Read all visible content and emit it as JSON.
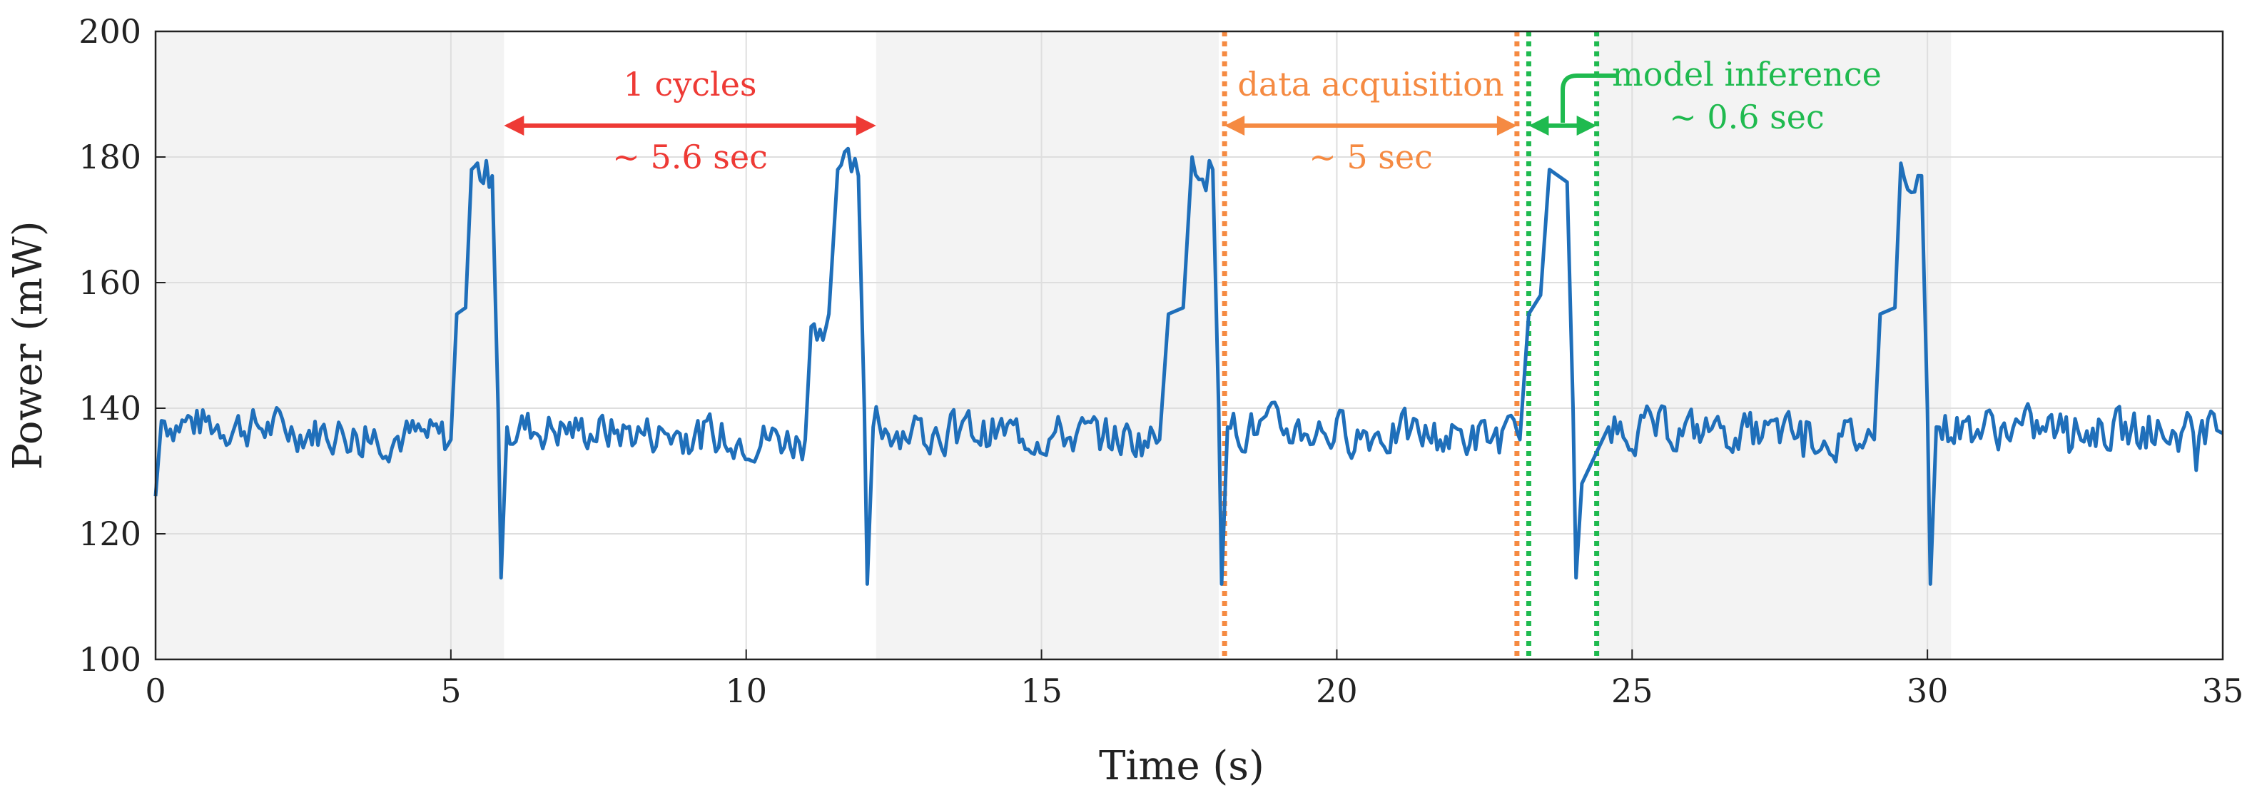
{
  "chart_data": {
    "type": "line",
    "xlabel": "Time (s)",
    "ylabel": "Power (mW)",
    "xlim": [
      0,
      35
    ],
    "ylim": [
      100,
      200
    ],
    "xticks": [
      0,
      5,
      10,
      15,
      20,
      25,
      30,
      35
    ],
    "yticks": [
      100,
      120,
      140,
      160,
      180,
      200
    ],
    "grid": true,
    "series": [
      {
        "name": "Power",
        "color": "#1f6fba",
        "baseline_mw": 136,
        "points": [
          [
            0,
            126
          ],
          [
            0.1,
            138
          ],
          [
            5.0,
            135
          ],
          [
            5.1,
            155
          ],
          [
            5.25,
            156
          ],
          [
            5.35,
            178
          ],
          [
            5.7,
            177
          ],
          [
            5.8,
            140
          ],
          [
            5.85,
            113
          ],
          [
            5.95,
            137
          ],
          [
            11.0,
            135
          ],
          [
            11.1,
            153
          ],
          [
            11.4,
            155
          ],
          [
            11.55,
            178
          ],
          [
            11.9,
            177
          ],
          [
            12.0,
            140
          ],
          [
            12.05,
            112
          ],
          [
            12.15,
            137
          ],
          [
            17.0,
            135
          ],
          [
            17.15,
            155
          ],
          [
            17.4,
            156
          ],
          [
            17.55,
            180
          ],
          [
            17.9,
            178
          ],
          [
            18.0,
            140
          ],
          [
            18.05,
            112
          ],
          [
            18.15,
            137
          ],
          [
            23.1,
            135
          ],
          [
            23.25,
            155
          ],
          [
            23.45,
            158
          ],
          [
            23.6,
            178
          ],
          [
            23.9,
            176
          ],
          [
            24.0,
            140
          ],
          [
            24.05,
            113
          ],
          [
            24.15,
            128
          ],
          [
            24.4,
            133
          ],
          [
            24.6,
            137
          ],
          [
            29.1,
            135
          ],
          [
            29.2,
            155
          ],
          [
            29.45,
            156
          ],
          [
            29.55,
            179
          ],
          [
            29.9,
            177
          ],
          [
            30.0,
            140
          ],
          [
            30.05,
            112
          ],
          [
            30.15,
            137
          ],
          [
            35,
            136
          ]
        ]
      }
    ],
    "shaded_regions": [
      [
        0,
        5.9
      ],
      [
        12.2,
        18.0
      ],
      [
        24.4,
        30.4
      ]
    ],
    "vertical_lines": [
      {
        "x": 18.1,
        "color": "#f58a42",
        "style": "dotted"
      },
      {
        "x": 23.05,
        "color": "#f58a42",
        "style": "dotted"
      },
      {
        "x": 23.25,
        "color": "#1fba4f",
        "style": "dotted"
      },
      {
        "x": 24.4,
        "color": "#1fba4f",
        "style": "dotted"
      }
    ],
    "annotations": [
      {
        "id": "cycle",
        "label": "1 cycles",
        "sublabel": "~ 5.6 sec",
        "x_start": 5.9,
        "x_end": 12.2,
        "y": 185,
        "color": "#ee3a35"
      },
      {
        "id": "acq",
        "label": "data acquisition",
        "sublabel": "~ 5 sec",
        "x_start": 18.1,
        "x_end": 23.05,
        "y": 185,
        "color": "#f58a42"
      },
      {
        "id": "inf",
        "label": "model inference",
        "sublabel": "~ 0.6 sec",
        "x_start": 23.25,
        "x_end": 24.4,
        "y": 185,
        "color": "#1fba4f"
      }
    ]
  }
}
